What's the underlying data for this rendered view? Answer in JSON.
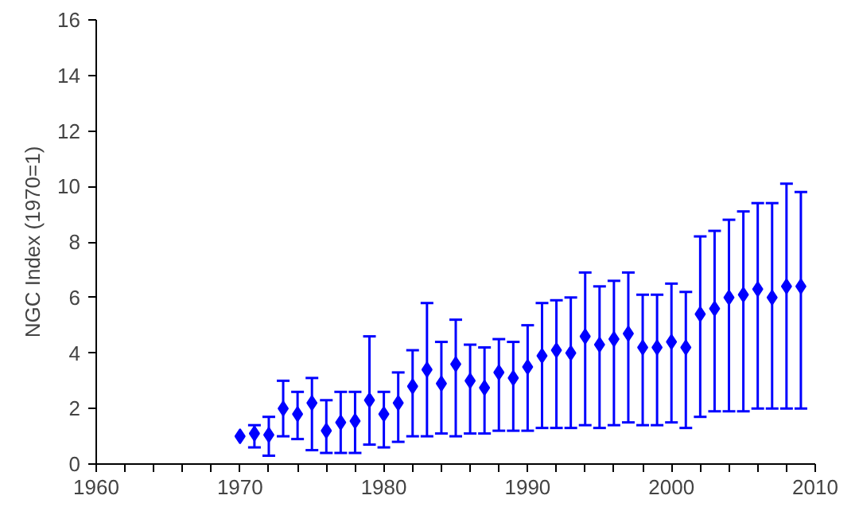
{
  "chart_data": {
    "type": "scatter",
    "ylabel": "NGC Index (1970=1)",
    "marker": "diamond",
    "grid": false,
    "x": [
      1970,
      1971,
      1972,
      1973,
      1974,
      1975,
      1976,
      1977,
      1978,
      1979,
      1980,
      1981,
      1982,
      1983,
      1984,
      1985,
      1986,
      1987,
      1988,
      1989,
      1990,
      1991,
      1992,
      1993,
      1994,
      1995,
      1996,
      1997,
      1998,
      1999,
      2000,
      2001,
      2002,
      2003,
      2004,
      2005,
      2006,
      2007,
      2008,
      2009
    ],
    "series": [
      {
        "color": "#0000ff",
        "values": [
          1.0,
          1.1,
          1.05,
          2.0,
          1.8,
          2.2,
          1.2,
          1.5,
          1.55,
          2.3,
          1.8,
          2.2,
          2.8,
          3.4,
          2.9,
          3.6,
          3.0,
          2.75,
          3.3,
          3.1,
          3.5,
          3.9,
          4.1,
          4.0,
          4.6,
          4.3,
          4.5,
          4.7,
          4.2,
          4.2,
          4.4,
          4.2,
          5.4,
          5.6,
          6.0,
          6.1,
          6.3,
          6.0,
          6.4,
          6.4
        ],
        "errors": [
          null,
          [
            0.6,
            1.4
          ],
          [
            0.3,
            1.7
          ],
          [
            1.0,
            3.0
          ],
          [
            0.9,
            2.6
          ],
          [
            0.5,
            3.1
          ],
          [
            0.4,
            2.3
          ],
          [
            0.4,
            2.6
          ],
          [
            0.4,
            2.6
          ],
          [
            0.7,
            4.6
          ],
          [
            0.6,
            2.6
          ],
          [
            0.8,
            3.3
          ],
          [
            1.0,
            4.1
          ],
          [
            1.0,
            5.8
          ],
          [
            1.1,
            4.4
          ],
          [
            1.0,
            5.2
          ],
          [
            1.1,
            4.3
          ],
          [
            1.1,
            4.2
          ],
          [
            1.2,
            4.5
          ],
          [
            1.2,
            4.4
          ],
          [
            1.2,
            5.0
          ],
          [
            1.3,
            5.8
          ],
          [
            1.3,
            5.9
          ],
          [
            1.3,
            6.0
          ],
          [
            1.4,
            6.9
          ],
          [
            1.3,
            6.4
          ],
          [
            1.4,
            6.6
          ],
          [
            1.5,
            6.9
          ],
          [
            1.4,
            6.1
          ],
          [
            1.4,
            6.1
          ],
          [
            1.5,
            6.5
          ],
          [
            1.3,
            6.2
          ],
          [
            1.7,
            8.2
          ],
          [
            1.9,
            8.4
          ],
          [
            1.9,
            8.8
          ],
          [
            1.9,
            9.1
          ],
          [
            2.0,
            9.4
          ],
          [
            2.0,
            9.4
          ],
          [
            2.0,
            10.1
          ],
          [
            2.0,
            9.8
          ]
        ]
      }
    ],
    "xlim": [
      1960,
      2010
    ],
    "xticks": [
      1960,
      {
        "value": 1962,
        "label": null
      },
      {
        "value": 1964,
        "label": null
      },
      {
        "value": 1966,
        "label": null
      },
      {
        "value": 1968,
        "label": null
      },
      1970,
      {
        "value": 1972,
        "label": null
      },
      {
        "value": 1974,
        "label": null
      },
      {
        "value": 1976,
        "label": null
      },
      {
        "value": 1978,
        "label": null
      },
      1980,
      {
        "value": 1982,
        "label": null
      },
      {
        "value": 1984,
        "label": null
      },
      {
        "value": 1986,
        "label": null
      },
      {
        "value": 1988,
        "label": null
      },
      1990,
      {
        "value": 1992,
        "label": null
      },
      {
        "value": 1994,
        "label": null
      },
      {
        "value": 1996,
        "label": null
      },
      {
        "value": 1998,
        "label": null
      },
      2000,
      {
        "value": 2002,
        "label": null
      },
      {
        "value": 2004,
        "label": null
      },
      {
        "value": 2006,
        "label": null
      },
      {
        "value": 2008,
        "label": null
      },
      2010
    ],
    "ylim": [
      0,
      16
    ],
    "yticks": [
      0,
      2,
      4,
      6,
      8,
      10,
      12,
      14,
      16
    ]
  }
}
